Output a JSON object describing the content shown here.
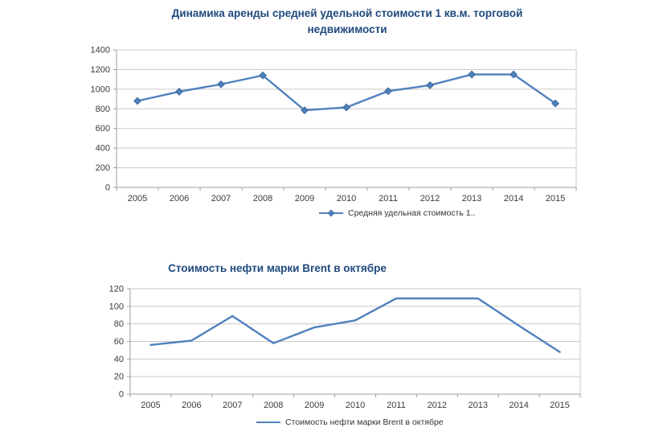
{
  "charts": [
    {
      "title": "Динамика аренды средней удельной стоимости 1 кв.м. торговой недвижимости",
      "legend_label": "Средняя удельная стоимость 1.."
    },
    {
      "title": "Стоимость нефти марки Brent в октябре",
      "legend_label": "Стоимость нефти марки Brent в октябре"
    }
  ],
  "chart_data": [
    {
      "type": "line",
      "title": "Динамика аренды средней удельной стоимости 1 кв.м. торговой недвижимости",
      "categories": [
        "2005",
        "2006",
        "2007",
        "2008",
        "2009",
        "2010",
        "2011",
        "2012",
        "2013",
        "2014",
        "2015"
      ],
      "series": [
        {
          "name": "Средняя удельная стоимость 1..",
          "values": [
            880,
            975,
            1050,
            1140,
            785,
            815,
            980,
            1040,
            1150,
            1150,
            855
          ]
        }
      ],
      "ylim": [
        0,
        1400
      ],
      "yticks": [
        0,
        200,
        400,
        600,
        800,
        1000,
        1200,
        1400
      ],
      "marker": "diamond",
      "grid": true,
      "legend_position": "bottom",
      "xlabel": "",
      "ylabel": ""
    },
    {
      "type": "line",
      "title": "Стоимость нефти марки Brent в октябре",
      "categories": [
        "2005",
        "2006",
        "2007",
        "2008",
        "2009",
        "2010",
        "2011",
        "2012",
        "2013",
        "2014",
        "2015"
      ],
      "series": [
        {
          "name": "Стоимость нефти марки Brent в октябре",
          "values": [
            56,
            61,
            89,
            58,
            76,
            84,
            109,
            109,
            109,
            78,
            48
          ]
        }
      ],
      "ylim": [
        0,
        120
      ],
      "yticks": [
        0,
        20,
        40,
        60,
        80,
        100,
        120
      ],
      "marker": "none",
      "grid": true,
      "legend_position": "bottom",
      "xlabel": "",
      "ylabel": ""
    }
  ],
  "colors": {
    "accent": "#4f81bd",
    "marker_edge": "#3a699e",
    "title": "#1f497d",
    "grid": "#c9c9c9",
    "axis": "#9e9e9e",
    "tick_text": "#3a3a3a"
  }
}
